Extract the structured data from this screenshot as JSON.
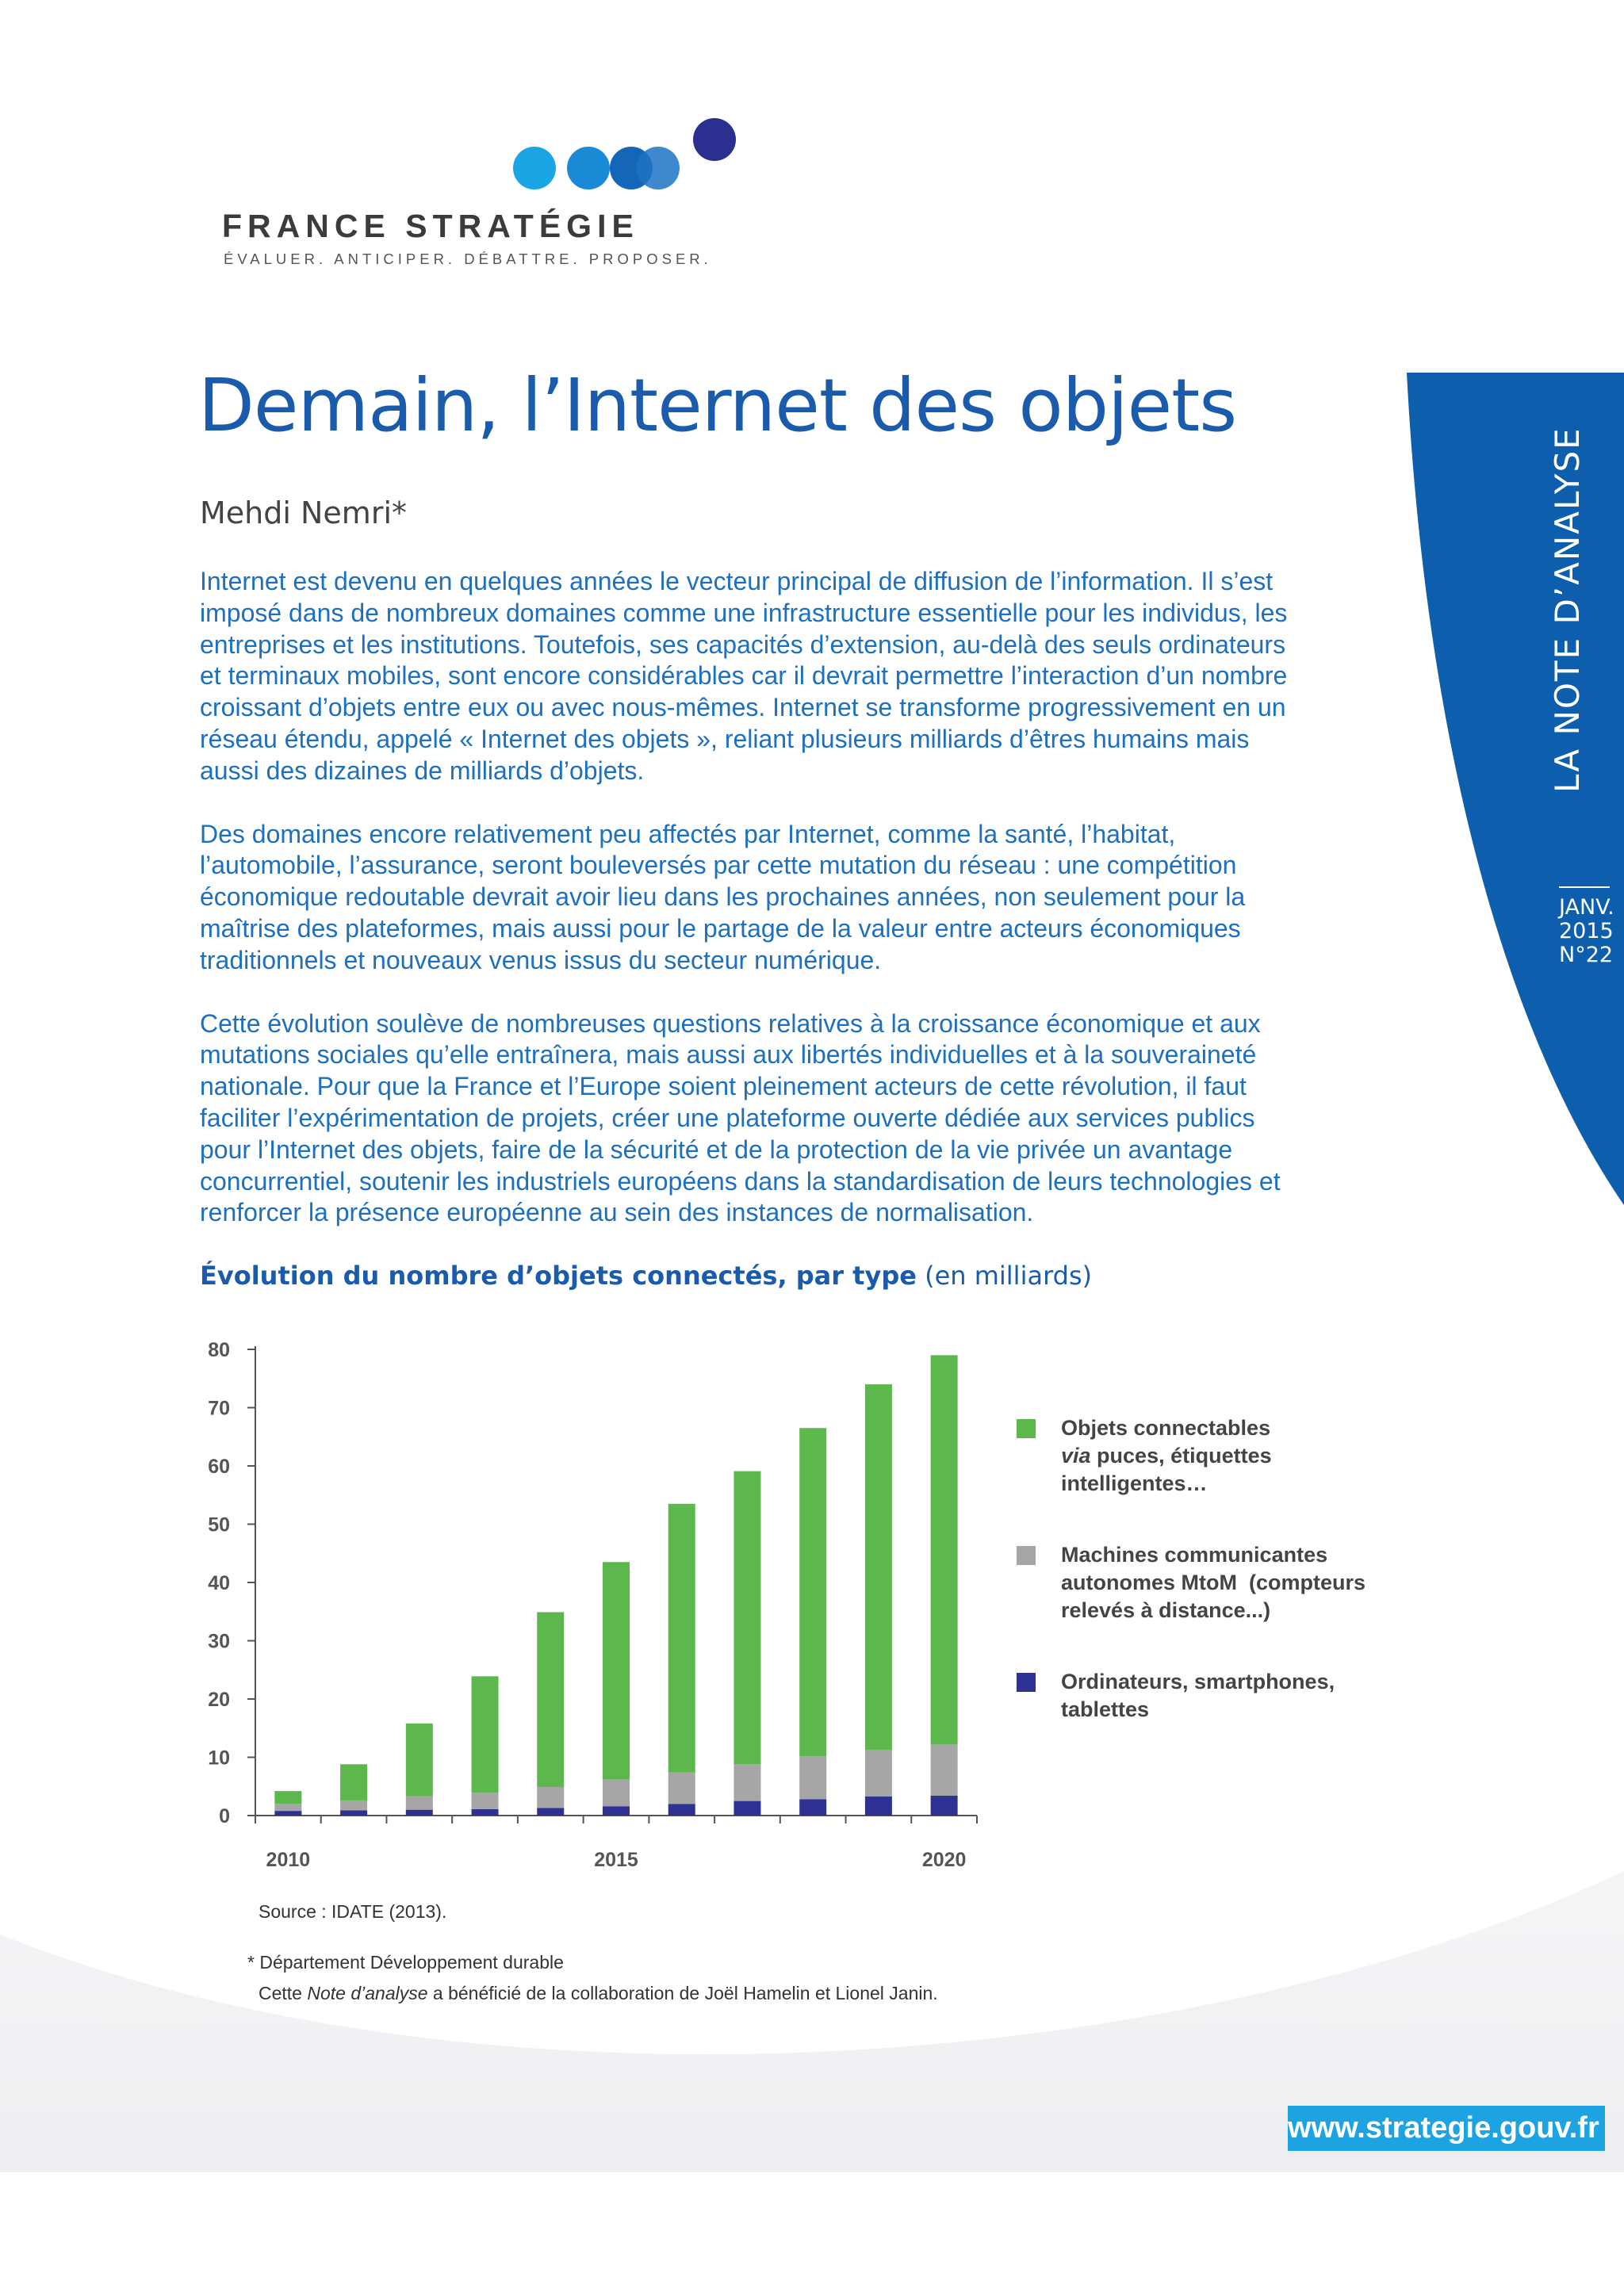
{
  "logo": {
    "brand": "FRANCE STRATÉGIE",
    "tagline": "ÉVALUER. ANTICIPER. DÉBATTRE. PROPOSER."
  },
  "side": {
    "label": "LA NOTE D’ANALYSE",
    "month": "JANV.",
    "year": "2015",
    "number": "N°22"
  },
  "title": "Demain, l’Internet des objets",
  "author": "Mehdi Nemri*",
  "abstract": {
    "p1": "Internet est devenu en quelques années le vecteur principal de diffusion de l’information. Il s’est imposé dans de nombreux domaines comme une infrastructure essentielle pour les individus, les entreprises et les institutions. Toutefois, ses capacités d’extension, au-delà des seuls ordinateurs et terminaux mobiles, sont encore considérables car il devrait permettre l’interaction d’un nombre croissant d’objets entre eux ou avec nous-mêmes. Internet se transforme progressivement en un réseau étendu, appelé « Internet des objets », reliant plusieurs milliards d’êtres humains mais aussi des dizaines de milliards d’objets.",
    "p2": "Des domaines encore relativement peu affectés par Internet, comme la santé, l’habitat, l’automobile, l’assurance, seront bouleversés par cette mutation du réseau : une compétition économique redoutable devrait avoir lieu dans les prochaines années, non seulement pour la maîtrise des plateformes, mais aussi pour le partage de la valeur entre acteurs économiques traditionnels et nouveaux venus issus du secteur numérique.",
    "p3": "Cette évolution soulève de nombreuses questions relatives à la croissance économique et aux mutations sociales qu’elle entraînera, mais aussi aux libertés individuelles et à la souveraineté nationale. Pour que la France et l’Europe soient pleinement acteurs de cette révolution, il faut faciliter l’expérimentation de projets, créer une plateforme ouverte dédiée aux services publics pour l’Internet des objets, faire de la sécurité et de la protection de la vie privée un avantage concurrentiel, soutenir les industriels européens dans la standardisation de leurs technologies et renforcer la présence européenne au sein des instances de normalisation."
  },
  "chart_heading": {
    "bold": "Évolution du nombre d’objets connectés, par type",
    "unit": "(en milliards)"
  },
  "chart_data": {
    "type": "bar",
    "stacked": true,
    "categories": [
      "2010",
      "2011",
      "2012",
      "2013",
      "2014",
      "2015",
      "2016",
      "2017",
      "2018",
      "2019",
      "2020"
    ],
    "x_tick_labels": [
      "2010",
      "2015",
      "2020"
    ],
    "ylim": [
      0,
      80
    ],
    "yticks": [
      0,
      10,
      20,
      30,
      40,
      50,
      60,
      70,
      80
    ],
    "grid": false,
    "legend_position": "right",
    "series": [
      {
        "name": "Ordinateurs, smartphones, tablettes",
        "color": "#2e3192",
        "values": [
          0.8,
          0.9,
          1.0,
          1.1,
          1.3,
          1.6,
          2.0,
          2.5,
          2.8,
          3.3,
          3.4
        ]
      },
      {
        "name": "Machines communicantes autonomes MtoM (compteurs relevés à distance...)",
        "color": "#a6a6a6",
        "values": [
          1.2,
          1.7,
          2.3,
          2.8,
          3.6,
          4.6,
          5.4,
          6.3,
          7.4,
          8.0,
          8.8
        ]
      },
      {
        "name": "Objets connectables via puces, étiquettes intelligentes…",
        "color": "#5cb84d",
        "values": [
          2.2,
          6.2,
          12.5,
          20.0,
          30.0,
          37.3,
          46.1,
          50.3,
          56.3,
          62.7,
          66.8
        ]
      }
    ]
  },
  "legend": {
    "item1_line1": "Objets connectables",
    "item1_via": "via",
    "item1_line2_rest": " puces, étiquettes",
    "item1_line3": "intelligentes…",
    "item2_line1": "Machines communicantes",
    "item2_line2": "autonomes MtoM  (compteurs",
    "item2_line3": "relevés à distance...)",
    "item3_line1": "Ordinateurs, smartphones,",
    "item3_line2": "tablettes",
    "colors": {
      "green": "#5cb84d",
      "gray": "#a6a6a6",
      "navy": "#2e3192"
    }
  },
  "source": "Source : IDATE (2013).",
  "footnote": {
    "line1": "* Département Développement durable",
    "line2_pre": "Cette ",
    "line2_em": "Note d’analyse",
    "line2_post": " a bénéficié de la collaboration de Joël Hamelin et Lionel Janin."
  },
  "url": "www.strategie.gouv.fr",
  "colors": {
    "title_blue": "#1b5bab",
    "text_blue": "#1d6fbf",
    "band_blue": "#0d5fae",
    "url_blue": "#1ea3e2"
  }
}
